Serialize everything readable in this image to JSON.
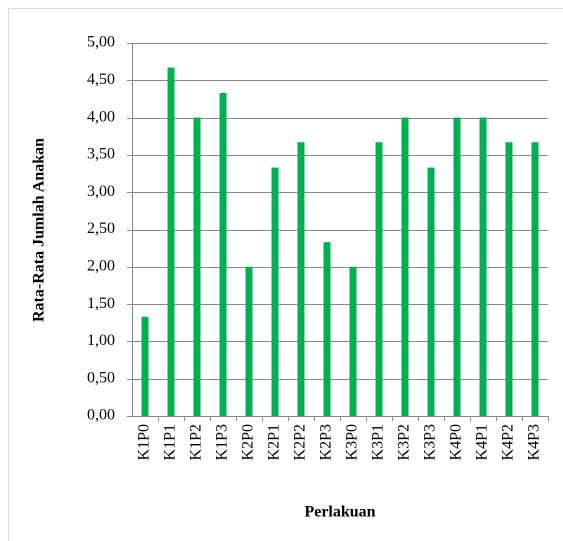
{
  "chart_data": {
    "type": "bar",
    "x_label": "Perlakuan",
    "y_label": "Rata-Rata Jumlah Anakan",
    "categories": [
      "K1P0",
      "K1P1",
      "K1P2",
      "K1P3",
      "K2P0",
      "K2P1",
      "K2P2",
      "K2P3",
      "K3P0",
      "K3P1",
      "K3P2",
      "K3P3",
      "K4P0",
      "K4P1",
      "K4P2",
      "K4P3"
    ],
    "values": [
      1.33,
      4.67,
      4.0,
      4.33,
      2.0,
      3.33,
      3.67,
      2.33,
      2.0,
      3.67,
      4.0,
      3.33,
      4.0,
      4.0,
      3.67,
      3.67
    ],
    "color": "#00b050",
    "ylim": [
      0,
      5
    ],
    "yticks": [
      {
        "value": 0,
        "label": "0,00"
      },
      {
        "value": 0.5,
        "label": "0,50"
      },
      {
        "value": 1,
        "label": "1,00"
      },
      {
        "value": 1.5,
        "label": "1,50"
      },
      {
        "value": 2,
        "label": "2,00"
      },
      {
        "value": 2.5,
        "label": "2,50"
      },
      {
        "value": 3,
        "label": "3,00"
      },
      {
        "value": 3.5,
        "label": "3,50"
      },
      {
        "value": 4,
        "label": "4,00"
      },
      {
        "value": 4.5,
        "label": "4,50"
      },
      {
        "value": 5,
        "label": "5,00"
      }
    ],
    "grid": true
  }
}
